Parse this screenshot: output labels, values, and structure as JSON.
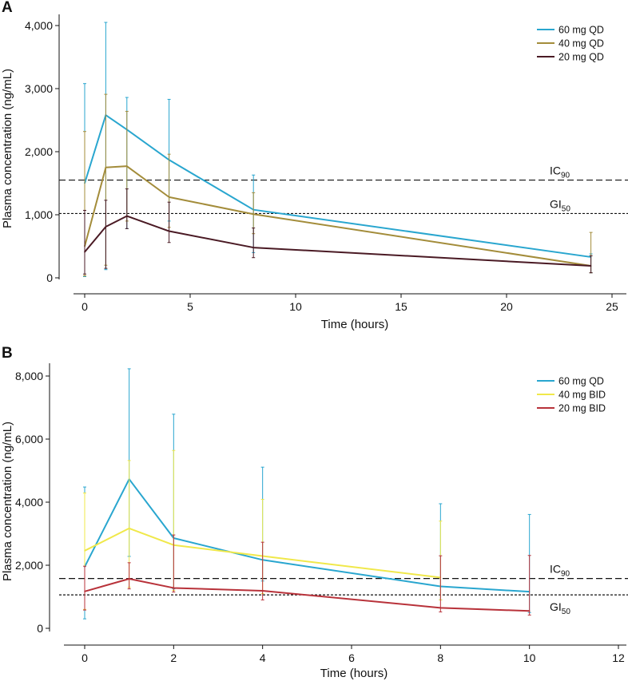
{
  "chart_data": [
    {
      "panel": "A",
      "type": "line",
      "xlabel": "Time (hours)",
      "ylabel": "Plasma concentration (ng/mL)",
      "xlim": [
        0,
        25
      ],
      "ylim": [
        0,
        4000
      ],
      "x_ticks": [
        0,
        5,
        10,
        15,
        20,
        25
      ],
      "x_tick_labels": [
        "0",
        "5",
        "10",
        "15",
        "20",
        "25"
      ],
      "y_ticks": [
        0,
        1000,
        2000,
        3000,
        4000
      ],
      "y_tick_labels": [
        "0",
        "1,000",
        "2,000",
        "3,000",
        "4,000"
      ],
      "legend_position": "top-right",
      "reference_lines": [
        {
          "name": "IC90",
          "base": "IC",
          "sub": "90",
          "value": 1550,
          "style": "dashed"
        },
        {
          "name": "GI50",
          "base": "GI",
          "sub": "50",
          "value": 1020,
          "style": "dotted"
        }
      ],
      "series": [
        {
          "name": "60 mg QD",
          "color": "#29a6cf",
          "x": [
            0,
            1,
            2,
            4,
            8,
            24
          ],
          "y": [
            1500,
            2580,
            2350,
            1870,
            1080,
            330
          ],
          "err_low": [
            20,
            130,
            780,
            900,
            400,
            80
          ],
          "err_high": [
            3080,
            4050,
            2860,
            2830,
            1630,
            380
          ]
        },
        {
          "name": "40 mg QD",
          "color": "#a38c3a",
          "x": [
            0,
            1,
            2,
            4,
            8,
            24
          ],
          "y": [
            500,
            1750,
            1770,
            1280,
            1010,
            190
          ],
          "err_low": [
            30,
            200,
            900,
            800,
            700,
            80
          ],
          "err_high": [
            2320,
            2910,
            2640,
            1960,
            1350,
            720
          ]
        },
        {
          "name": "20 mg QD",
          "color": "#4a1a24",
          "x": [
            0,
            1,
            2,
            4,
            8,
            24
          ],
          "y": [
            410,
            810,
            980,
            740,
            480,
            190
          ],
          "err_low": [
            60,
            150,
            780,
            560,
            320,
            80
          ],
          "err_high": [
            1070,
            1230,
            1410,
            1200,
            790,
            350
          ]
        }
      ]
    },
    {
      "panel": "B",
      "type": "line",
      "xlabel": "Time (hours)",
      "ylabel": "Plasma concentration (ng/mL)",
      "xlim": [
        0,
        12
      ],
      "ylim": [
        0,
        8000
      ],
      "x_ticks": [
        0,
        2,
        4,
        6,
        8,
        10,
        12
      ],
      "x_tick_labels": [
        "0",
        "2",
        "4",
        "6",
        "8",
        "10",
        "12"
      ],
      "y_ticks": [
        0,
        2000,
        4000,
        6000,
        8000
      ],
      "y_tick_labels": [
        "0",
        "2,000",
        "4,000",
        "6,000",
        "8,000"
      ],
      "legend_position": "top-right",
      "reference_lines": [
        {
          "name": "IC90",
          "base": "IC",
          "sub": "90",
          "value": 1580,
          "style": "dashed"
        },
        {
          "name": "GI50",
          "base": "GI",
          "sub": "50",
          "value": 1060,
          "style": "dotted"
        }
      ],
      "series": [
        {
          "name": "60 mg QD",
          "color": "#29a6cf",
          "x": [
            0,
            1,
            2,
            4,
            8,
            10
          ],
          "y": [
            1950,
            4730,
            2860,
            2170,
            1330,
            1160
          ],
          "err_low": [
            300,
            2280,
            1250,
            1500,
            900,
            500
          ],
          "err_high": [
            4480,
            8230,
            6790,
            5110,
            3950,
            3610
          ]
        },
        {
          "name": "40 mg BID",
          "color": "#f0e84a",
          "x": [
            0,
            1,
            2,
            4,
            8
          ],
          "y": [
            2460,
            3170,
            2640,
            2290,
            1610
          ],
          "err_low": [
            600,
            1300,
            1200,
            1100,
            900
          ],
          "err_high": [
            4290,
            5320,
            5640,
            4090,
            3400
          ]
        },
        {
          "name": "20 mg BID",
          "color": "#b8323a",
          "x": [
            0,
            1,
            2,
            4,
            8,
            10
          ],
          "y": [
            1170,
            1570,
            1280,
            1190,
            650,
            550
          ],
          "err_low": [
            580,
            1250,
            1150,
            900,
            520,
            420
          ],
          "err_high": [
            1970,
            2080,
            2960,
            2730,
            2300,
            2310
          ]
        }
      ]
    }
  ]
}
